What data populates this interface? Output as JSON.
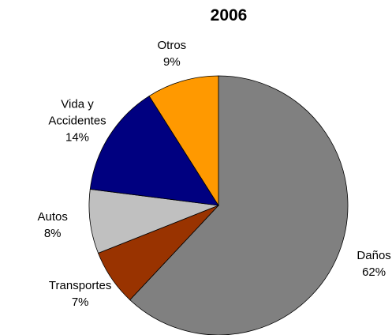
{
  "chart_data": {
    "type": "pie",
    "title": "2006",
    "categories": [
      "Daños",
      "Transportes",
      "Autos",
      "Vida y Accidentes",
      "Otros"
    ],
    "values": [
      62,
      7,
      8,
      14,
      9
    ],
    "value_labels": [
      "62%",
      "7%",
      "8%",
      "14%",
      "9%"
    ],
    "colors": [
      "#808080",
      "#993300",
      "#c0c0c0",
      "#000080",
      "#ff9900"
    ]
  }
}
